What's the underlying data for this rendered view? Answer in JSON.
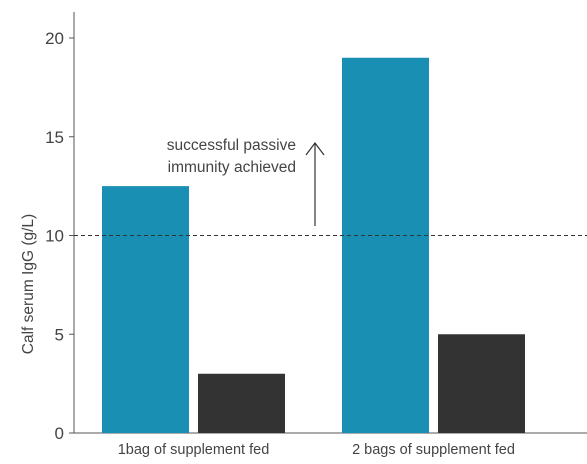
{
  "chart_data": {
    "type": "bar",
    "categories": [
      "1bag of supplement fed",
      "2 bags of supplement fed"
    ],
    "series": [
      {
        "values": [
          12.5,
          19.0
        ],
        "color": "#1a8fb4"
      },
      {
        "values": [
          3.0,
          5.0
        ],
        "color": "#333333"
      }
    ],
    "ylabel": "Calf serum IgG (g/L)",
    "ylim": [
      0,
      20
    ],
    "yticks": [
      0,
      5,
      10,
      15,
      20
    ],
    "threshold": 10,
    "annotation": [
      "successful passive",
      "immunity achieved"
    ],
    "grid": false
  }
}
